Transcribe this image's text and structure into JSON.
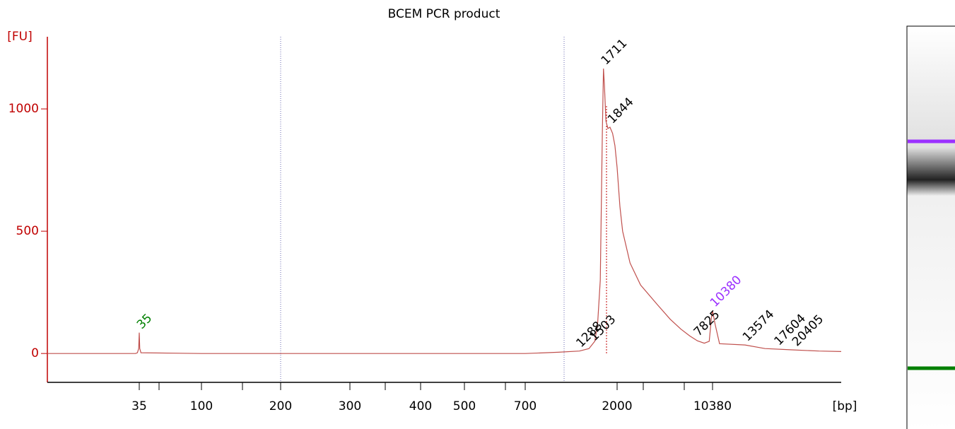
{
  "chart_data": {
    "type": "line",
    "title": "BCEM PCR product",
    "ylabel": "[FU]",
    "xlabel": "[bp]",
    "xlim": [
      8,
      30000
    ],
    "ylim": [
      -118,
      1295
    ],
    "xticks": [
      35,
      100,
      200,
      300,
      400,
      500,
      700,
      2000,
      10380
    ],
    "yticks": [
      0,
      500,
      1000
    ],
    "series": [
      {
        "color": "#c0504d",
        "x": [
          8,
          20,
          33,
          34,
          34.7,
          35,
          35.3,
          36,
          100,
          700,
          1020,
          1300,
          1450,
          1550,
          1600,
          1650,
          1690,
          1711,
          1730,
          1760,
          1800,
          1844,
          1900,
          1950,
          2000,
          2100,
          2200,
          2500,
          3000,
          4000,
          5000,
          6000,
          7000,
          8000,
          9000,
          9800,
          10200,
          10380,
          10600,
          11000,
          13574,
          16000,
          20000,
          25000,
          30000
        ],
        "values": [
          0,
          0,
          0,
          3,
          20,
          85,
          20,
          3,
          0,
          0,
          5,
          10,
          20,
          50,
          120,
          300,
          900,
          1165,
          1100,
          950,
          920,
          925,
          900,
          850,
          760,
          600,
          500,
          370,
          280,
          200,
          140,
          100,
          72,
          52,
          42,
          50,
          150,
          175,
          120,
          40,
          35,
          20,
          15,
          10,
          8
        ]
      }
    ],
    "peak_labels": [
      {
        "value": 35,
        "color": "#008000"
      },
      {
        "value": 1288,
        "color": "#000000"
      },
      {
        "value": 1503,
        "color": "#000000"
      },
      {
        "value": 1711,
        "color": "#000000"
      },
      {
        "value": 1844,
        "color": "#000000"
      },
      {
        "value": 7825,
        "color": "#000000"
      },
      {
        "value": 10380,
        "color": "#9b30ff"
      },
      {
        "value": 13574,
        "color": "#000000"
      },
      {
        "value": 17604,
        "color": "#000000"
      },
      {
        "value": 20405,
        "color": "#000000"
      }
    ]
  }
}
